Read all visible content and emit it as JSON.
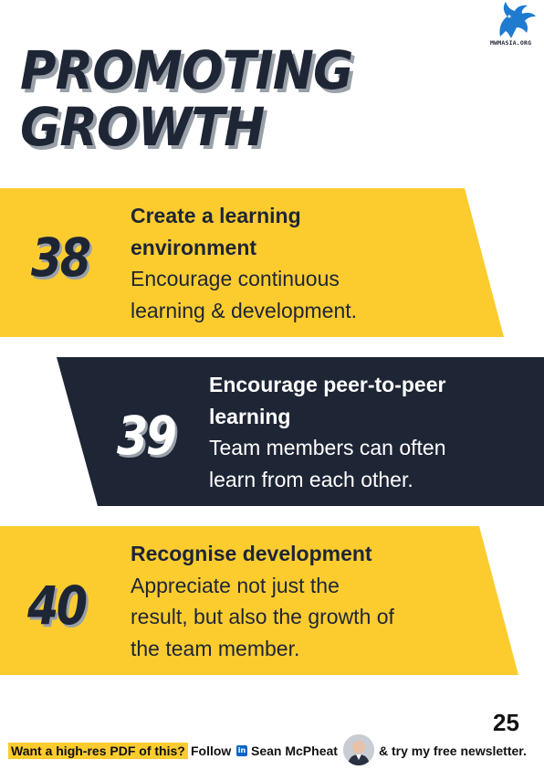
{
  "logo": {
    "text": "MWMASIA.ORG",
    "icon": "griffin-icon",
    "color": "#1e7bd0"
  },
  "title": {
    "line1": "PROMOTING",
    "line2": "GROWTH"
  },
  "items": [
    {
      "number": "38",
      "heading_line1": "Create a learning",
      "heading_line2": "environment",
      "desc_line1": "Encourage continuous",
      "desc_line2": "learning & development."
    },
    {
      "number": "39",
      "heading_line1": "Encourage peer-to-peer",
      "heading_line2": "learning",
      "desc_line1": "Team members can often",
      "desc_line2": "learn from each other."
    },
    {
      "number": "40",
      "heading_line1": "Recognise development",
      "desc_line1": "Appreciate not just the",
      "desc_line2": "result, but also the growth of",
      "desc_line3": "the team member."
    }
  ],
  "page_number": "25",
  "footer": {
    "cta": "Want a high-res PDF of this?",
    "follow": "Follow",
    "linkedin_icon": "in",
    "author": "Sean McPheat",
    "newsletter": "& try my free newsletter."
  },
  "colors": {
    "yellow": "#fccc2f",
    "navy": "#1e2535",
    "shadow": "#9aa0a8"
  }
}
